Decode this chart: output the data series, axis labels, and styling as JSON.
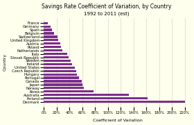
{
  "title": "Savings Rate Coefficient of Variation, by Country",
  "subtitle": "1992 to 2011 (est)",
  "xlabel": "Coefficient of Variation",
  "ylabel": "Country",
  "countries": [
    "Denmark",
    "Finland",
    "Australia",
    "Korea",
    "Norway",
    "Japan",
    "Canada",
    "Portugal",
    "Hungary",
    "Czech Republic",
    "United States",
    "Ireland",
    "Sweden",
    "Slovak Republic",
    "Italy",
    "Netherlands",
    "Poland",
    "Austria",
    "United Kingdom",
    "Switzerland",
    "Belgium",
    "Spain",
    "Germany",
    "France"
  ],
  "values": [
    2.2,
    1.62,
    1.33,
    0.78,
    0.62,
    0.6,
    0.59,
    0.55,
    0.52,
    0.5,
    0.48,
    0.44,
    0.42,
    0.38,
    0.36,
    0.29,
    0.27,
    0.25,
    0.22,
    0.21,
    0.16,
    0.13,
    0.1,
    0.06
  ],
  "bar_color": "#7B2D8B",
  "background_color": "#FFFFEE",
  "grid_color": "#CCCCCC",
  "title_fontsize": 5.5,
  "subtitle_fontsize": 5,
  "label_fontsize": 4.5,
  "tick_fontsize": 3.8
}
